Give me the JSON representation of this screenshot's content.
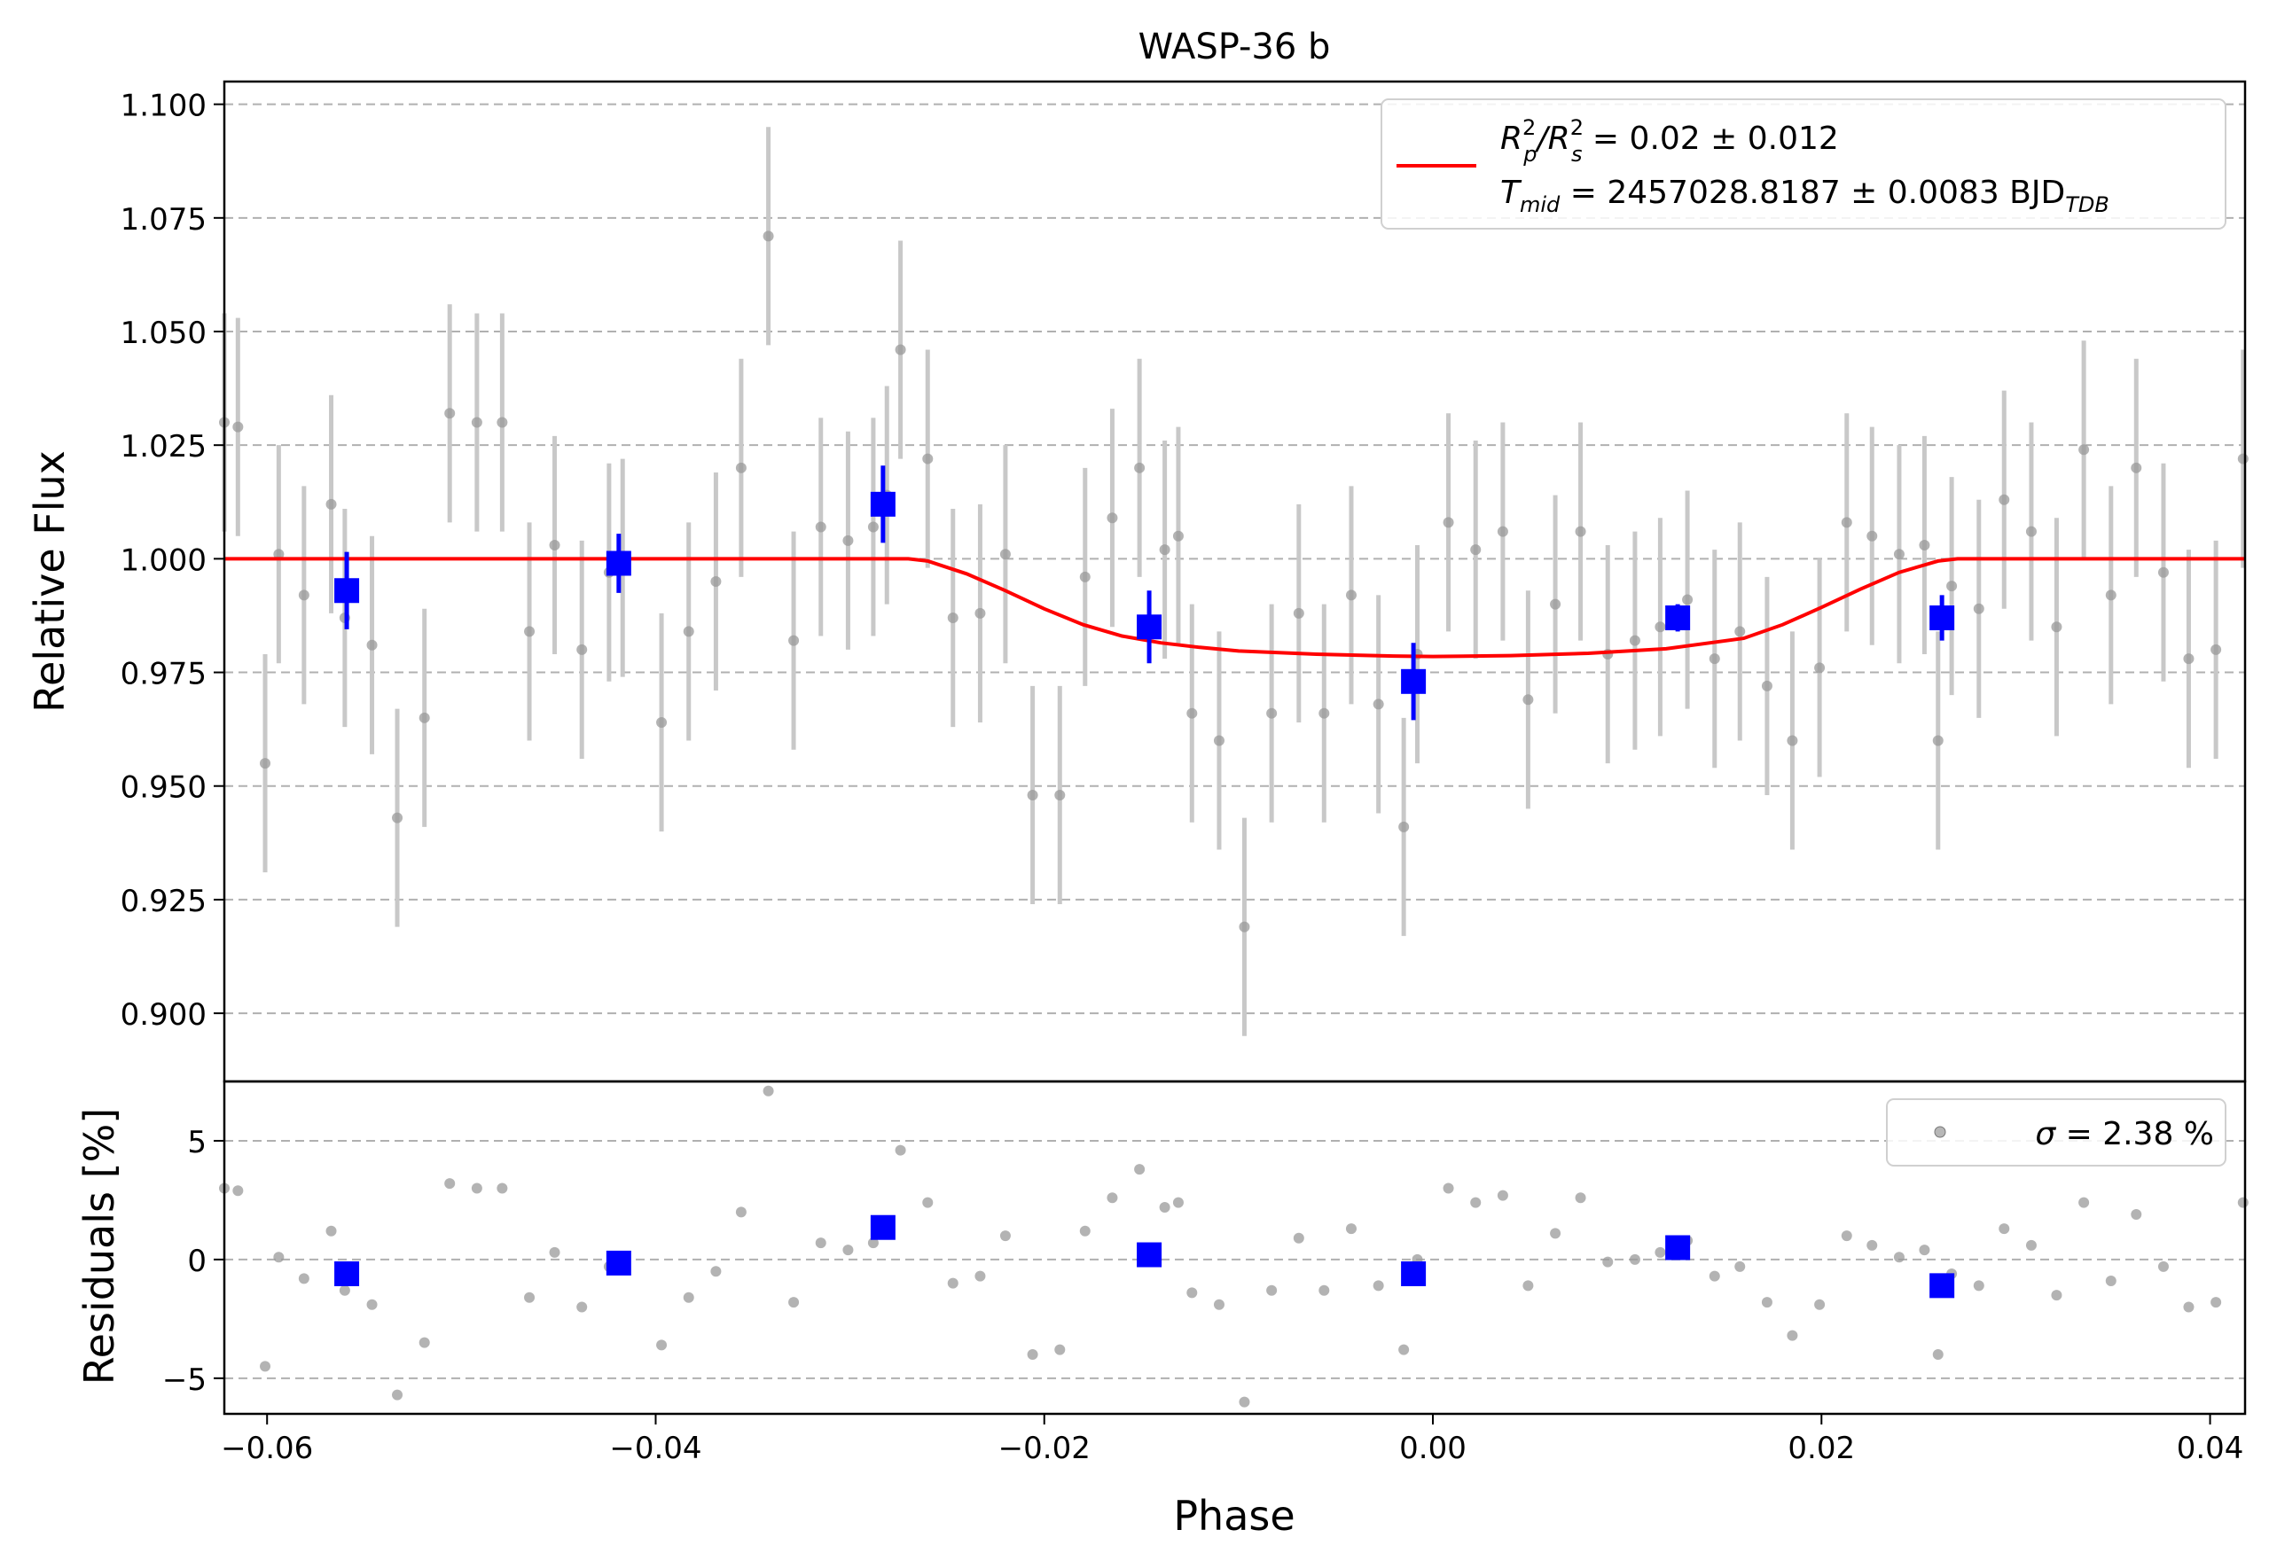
{
  "chart_data": [
    {
      "type": "scatter",
      "panel": "main",
      "title": "WASP-36 b",
      "xlabel": "",
      "ylabel": "Relative Flux",
      "xlim": [
        -0.0622,
        0.0418
      ],
      "ylim": [
        0.885,
        1.105
      ],
      "yticks": [
        "0.900",
        "0.925",
        "0.950",
        "0.975",
        "1.000",
        "1.025",
        "1.050",
        "1.075",
        "1.100"
      ],
      "grid": "horizontal dashed",
      "legend": {
        "placement": "top-right",
        "line1_prefix": "R",
        "line1_sup1": "2",
        "line1_sub1": "p",
        "line1_mid": "/R",
        "line1_sup2": "2",
        "line1_sub2": "s",
        "line1_rest": " = 0.02 ± 0.012",
        "line2_prefix": "T",
        "line2_sub": "mid",
        "line2_rest": " = 2457028.8187 ± 0.0083 BJD",
        "line2_unit_sub": "TDB"
      },
      "colors": {
        "raw": "#999999",
        "raw_err": "#c8c8c8",
        "binned": "#0000ff",
        "model": "#ff0000"
      },
      "raw_phase": [
        -0.0622,
        -0.0615,
        -0.0601,
        -0.0594,
        -0.0581,
        -0.0567,
        -0.056,
        -0.0546,
        -0.0533,
        -0.0519,
        -0.0506,
        -0.0492,
        -0.0479,
        -0.0465,
        -0.0452,
        -0.0438,
        -0.0424,
        -0.0417,
        -0.0397,
        -0.0383,
        -0.0369,
        -0.0356,
        -0.0342,
        -0.0329,
        -0.0315,
        -0.0301,
        -0.0288,
        -0.0281,
        -0.0274,
        -0.026,
        -0.0247,
        -0.0233,
        -0.022,
        -0.0206,
        -0.0192,
        -0.0179,
        -0.0165,
        -0.0151,
        -0.0138,
        -0.0131,
        -0.0124,
        -0.011,
        -0.0097,
        -0.0083,
        -0.0069,
        -0.0056,
        -0.0042,
        -0.0028,
        -0.0015,
        -0.0008,
        0.0008,
        0.0022,
        0.0036,
        0.0049,
        0.0063,
        0.0076,
        0.009,
        0.0104,
        0.0117,
        0.0131,
        0.0145,
        0.0158,
        0.0172,
        0.0185,
        0.0199,
        0.0213,
        0.0226,
        0.024,
        0.0253,
        0.026,
        0.0267,
        0.0281,
        0.0294,
        0.0308,
        0.0321,
        0.0335,
        0.0349,
        0.0362,
        0.0376,
        0.0389,
        0.0403,
        0.0417
      ],
      "raw_flux": [
        1.03,
        1.029,
        0.955,
        1.001,
        0.992,
        1.012,
        0.987,
        0.981,
        0.943,
        0.965,
        1.032,
        1.03,
        1.03,
        0.984,
        1.003,
        0.98,
        0.997,
        0.998,
        0.964,
        0.984,
        0.995,
        1.02,
        1.071,
        0.982,
        1.007,
        1.004,
        1.007,
        1.014,
        1.046,
        1.022,
        0.987,
        0.988,
        1.001,
        0.948,
        0.948,
        0.996,
        1.009,
        1.02,
        1.002,
        1.005,
        0.966,
        0.96,
        0.919,
        0.966,
        0.988,
        0.966,
        0.992,
        0.968,
        0.941,
        0.979,
        1.008,
        1.002,
        1.006,
        0.969,
        0.99,
        1.006,
        0.979,
        0.982,
        0.985,
        0.991,
        0.978,
        0.984,
        0.972,
        0.96,
        0.976,
        1.008,
        1.005,
        1.001,
        1.003,
        0.96,
        0.994,
        0.989,
        1.013,
        1.006,
        0.985,
        1.024,
        0.992,
        1.02,
        0.997,
        0.978,
        0.98,
        1.022
      ],
      "raw_err": 0.024,
      "binned_phase": [
        -0.0559,
        -0.0419,
        -0.0283,
        -0.0146,
        -0.001,
        0.0126,
        0.0262
      ],
      "binned_flux": [
        0.993,
        0.999,
        1.012,
        0.985,
        0.973,
        0.987,
        0.987
      ],
      "binned_err": [
        0.0085,
        0.0065,
        0.0085,
        0.008,
        0.0085,
        0.003,
        0.005
      ],
      "model_phase": [
        -0.0622,
        -0.027,
        -0.026,
        -0.024,
        -0.022,
        -0.02,
        -0.018,
        -0.016,
        -0.014,
        -0.012,
        -0.01,
        -0.006,
        -0.002,
        0.0,
        0.004,
        0.008,
        0.012,
        0.016,
        0.018,
        0.02,
        0.022,
        0.024,
        0.026,
        0.027,
        0.0418
      ],
      "model_flux": [
        1.0,
        1.0,
        0.9995,
        0.9967,
        0.993,
        0.989,
        0.9855,
        0.983,
        0.9815,
        0.9805,
        0.9797,
        0.979,
        0.9786,
        0.9785,
        0.9787,
        0.9792,
        0.9802,
        0.9825,
        0.9855,
        0.9893,
        0.9933,
        0.997,
        0.9995,
        1.0,
        1.0
      ]
    },
    {
      "type": "scatter",
      "panel": "residuals",
      "xlabel": "Phase",
      "ylabel": "Residuals [%]",
      "xlim": [
        -0.0622,
        0.0418
      ],
      "ylim": [
        -6.5,
        7.5
      ],
      "yticks": [
        "−5",
        "0",
        "5"
      ],
      "xticks": [
        "−0.06",
        "−0.04",
        "−0.02",
        "0.00",
        "0.02",
        "0.04"
      ],
      "grid": "horizontal dashed",
      "legend": {
        "placement": "top-right",
        "sigma_symbol": "σ",
        "text": " = 2.38 %"
      },
      "resid": [
        3.0,
        2.9,
        -4.5,
        0.1,
        -0.8,
        1.2,
        -1.3,
        -1.9,
        -5.7,
        -3.5,
        3.2,
        3.0,
        3.0,
        -1.6,
        0.3,
        -2.0,
        -0.3,
        -0.2,
        -3.6,
        -1.6,
        -0.5,
        2.0,
        7.1,
        -1.8,
        0.7,
        0.4,
        0.7,
        1.4,
        4.6,
        2.4,
        -1.0,
        -0.7,
        1.0,
        -4.0,
        -3.8,
        1.2,
        2.6,
        3.8,
        2.2,
        2.4,
        -1.4,
        -1.9,
        -6.0,
        -1.3,
        0.9,
        -1.3,
        1.3,
        -1.1,
        -3.8,
        0.0,
        3.0,
        2.4,
        2.7,
        -1.1,
        1.1,
        2.6,
        -0.1,
        0.0,
        0.3,
        0.8,
        -0.7,
        -0.3,
        -1.8,
        -3.2,
        -1.9,
        1.0,
        0.6,
        0.1,
        0.4,
        -4.0,
        -0.6,
        -1.1,
        1.3,
        0.6,
        -1.5,
        2.4,
        -0.9,
        1.9,
        -0.3,
        -2.0,
        -1.8,
        2.4
      ],
      "binned_resid": [
        -0.6,
        -0.15,
        1.35,
        0.2,
        -0.6,
        0.5,
        -1.1
      ]
    }
  ]
}
